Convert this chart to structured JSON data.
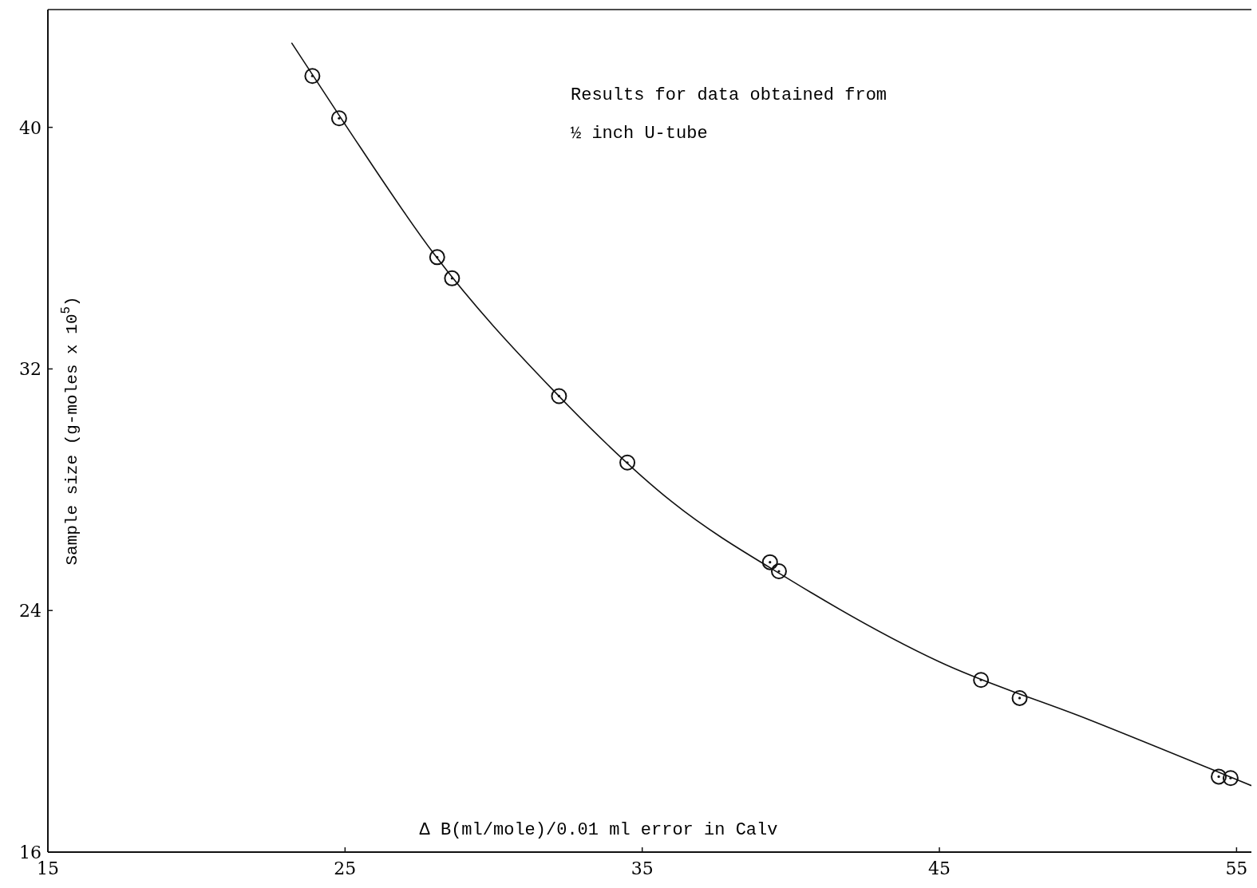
{
  "chart_data": {
    "type": "scatter",
    "xlabel": "Δ B(ml/mole)/0.01 ml error in Calv",
    "ylabel": "Sample size (g-moles x 10$^{5}$)",
    "annotations": [
      "Results for data obtained from\n½ inch U-tube"
    ],
    "xlim": [
      15,
      55.5
    ],
    "ylim": [
      16,
      43.9
    ],
    "xticks": [
      15,
      25,
      35,
      45,
      55
    ],
    "yticks": [
      16,
      24,
      32,
      40
    ],
    "grid": false,
    "series": [
      {
        "color": "#111111",
        "marker": "circle",
        "x": [
          23.9,
          24.8,
          28.1,
          28.6,
          32.2,
          34.5,
          39.3,
          39.6,
          46.4,
          47.7,
          54.4,
          54.8
        ],
        "values": [
          41.7,
          40.3,
          35.7,
          35.0,
          31.1,
          28.9,
          25.6,
          25.3,
          21.7,
          21.1,
          18.5,
          18.45
        ]
      },
      {
        "type": "line",
        "color": "#111111",
        "marker": "none",
        "line_style": "solid",
        "x": [
          23.2,
          25,
          28,
          32,
          36,
          40,
          45,
          50,
          55.5
        ],
        "values": [
          42.8,
          40.1,
          35.8,
          31.3,
          27.6,
          25.0,
          22.3,
          20.4,
          18.2
        ]
      }
    ]
  }
}
